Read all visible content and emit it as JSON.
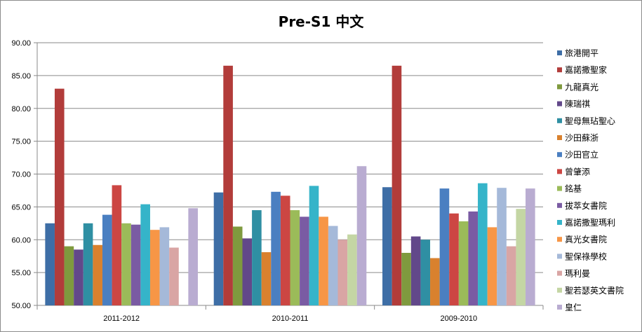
{
  "chart_data": {
    "type": "bar",
    "title": "Pre-S1 中文",
    "categories": [
      "2011-2012",
      "2010-2011",
      "2009-2010"
    ],
    "ylim": [
      50,
      90
    ],
    "yticks": [
      "50.00",
      "55.00",
      "60.00",
      "65.00",
      "70.00",
      "75.00",
      "80.00",
      "85.00",
      "90.00"
    ],
    "grid": true,
    "legend_position": "right",
    "series": [
      {
        "name": "旅港開平",
        "color": "#3e6ea6",
        "values": [
          62.5,
          67.2,
          68.0
        ]
      },
      {
        "name": "嘉諾撒聖家",
        "color": "#b23c3a",
        "values": [
          83.0,
          86.5,
          86.5
        ]
      },
      {
        "name": "九龍真光",
        "color": "#7f9a3e",
        "values": [
          59.0,
          62.0,
          58.0
        ]
      },
      {
        "name": "陳瑞祺",
        "color": "#62488a",
        "values": [
          58.5,
          60.2,
          60.5
        ]
      },
      {
        "name": "聖母無玷聖心",
        "color": "#2f8fa3",
        "values": [
          62.5,
          64.5,
          60.0
        ]
      },
      {
        "name": "沙田蘇浙",
        "color": "#d9812e",
        "values": [
          59.2,
          58.1,
          57.2
        ]
      },
      {
        "name": "沙田官立",
        "color": "#4a7fc1",
        "values": [
          63.8,
          67.3,
          67.8
        ]
      },
      {
        "name": "曾肇添",
        "color": "#cc4643",
        "values": [
          68.3,
          66.7,
          64.0
        ]
      },
      {
        "name": "銘基",
        "color": "#9bbb59",
        "values": [
          62.5,
          64.5,
          62.8
        ]
      },
      {
        "name": "拔萃女書院",
        "color": "#7a5ba3",
        "values": [
          62.3,
          63.5,
          64.3
        ]
      },
      {
        "name": "嘉諾撒聖瑪利",
        "color": "#35b4c9",
        "values": [
          65.4,
          68.2,
          68.6
        ]
      },
      {
        "name": "真光女書院",
        "color": "#f79646",
        "values": [
          61.5,
          63.5,
          61.9
        ]
      },
      {
        "name": "聖保祿學校",
        "color": "#a5b9d9",
        "values": [
          61.9,
          62.1,
          67.9
        ]
      },
      {
        "name": "瑪利曼",
        "color": "#d9a5a4",
        "values": [
          58.8,
          60.0,
          59.0
        ]
      },
      {
        "name": "聖若瑟英文書院",
        "color": "#c4d6a4",
        "values": [
          null,
          60.8,
          64.7
        ]
      },
      {
        "name": "皇仁",
        "color": "#b9acd1",
        "values": [
          64.8,
          71.2,
          67.8
        ]
      }
    ]
  }
}
